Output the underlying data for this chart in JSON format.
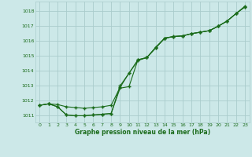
{
  "background_color": "#cce8e8",
  "grid_color": "#aacccc",
  "line_color": "#1a6b1a",
  "marker_color": "#1a6b1a",
  "xlabel": "Graphe pression niveau de la mer (hPa)",
  "xlim": [
    -0.5,
    23.5
  ],
  "ylim": [
    1010.55,
    1018.65
  ],
  "yticks": [
    1011,
    1012,
    1013,
    1014,
    1015,
    1016,
    1017,
    1018
  ],
  "xticks": [
    0,
    1,
    2,
    3,
    4,
    5,
    6,
    7,
    8,
    9,
    10,
    11,
    12,
    13,
    14,
    15,
    16,
    17,
    18,
    19,
    20,
    21,
    22,
    23
  ],
  "series1_y": [
    1011.7,
    1011.8,
    1011.75,
    1011.6,
    1011.55,
    1011.5,
    1011.55,
    1011.6,
    1011.7,
    1012.9,
    1013.85,
    1014.7,
    1014.9,
    1015.55,
    1016.2,
    1016.3,
    1016.35,
    1016.5,
    1016.6,
    1016.7,
    1017.0,
    1017.35,
    1017.85,
    1018.3
  ],
  "series2_y": [
    1011.7,
    1011.8,
    1011.6,
    1011.05,
    1011.0,
    1011.0,
    1011.05,
    1011.1,
    1011.15,
    1012.85,
    1012.95,
    1014.75,
    1014.9,
    1015.55,
    1016.2,
    1016.3,
    1016.35,
    1016.5,
    1016.6,
    1016.7,
    1017.0,
    1017.35,
    1017.85,
    1018.3
  ],
  "series3_y": [
    1011.7,
    1011.8,
    1011.6,
    1011.05,
    1011.0,
    1011.0,
    1011.05,
    1011.1,
    1011.15,
    1013.0,
    1013.85,
    1014.75,
    1014.9,
    1015.6,
    1016.2,
    1016.32,
    1016.35,
    1016.5,
    1016.6,
    1016.7,
    1017.0,
    1017.35,
    1017.85,
    1018.35
  ]
}
